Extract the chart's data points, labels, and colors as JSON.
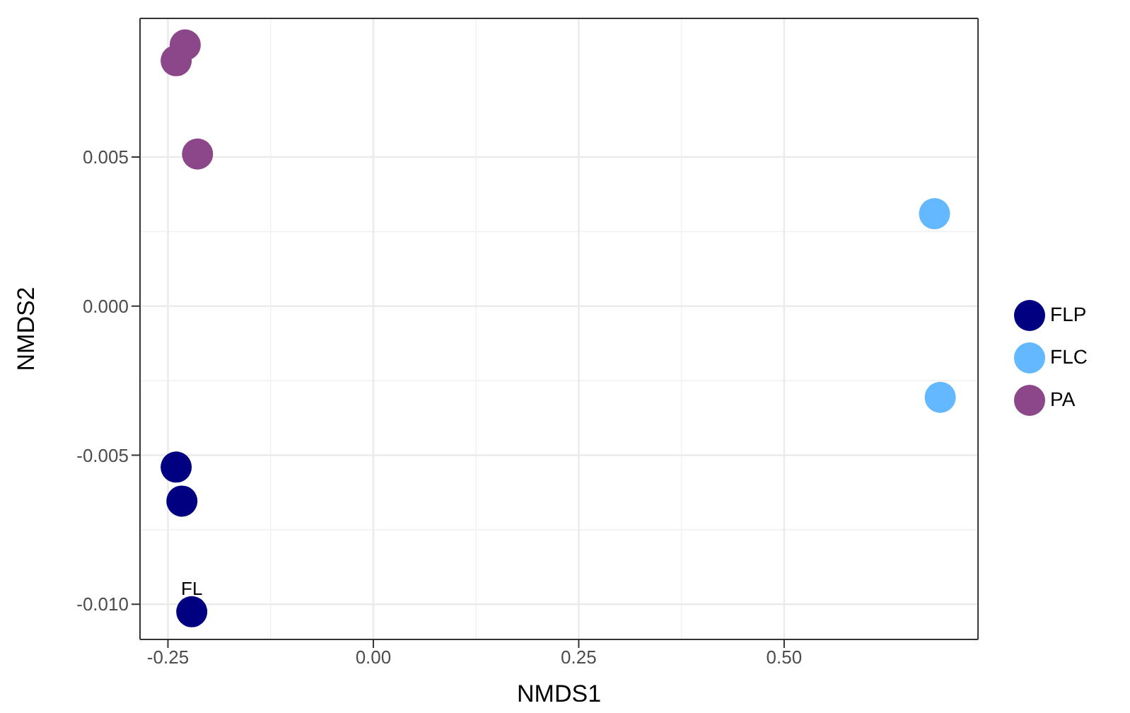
{
  "chart_data": {
    "type": "scatter",
    "xlabel": "NMDS1",
    "ylabel": "NMDS2",
    "xlim": [
      -0.284,
      0.736
    ],
    "xticks": [
      {
        "value": -0.25,
        "label": "-0.25"
      },
      {
        "value": 0,
        "label": "0.00"
      },
      {
        "value": 0.25,
        "label": "0.25"
      },
      {
        "value": 0.5,
        "label": "0.50"
      }
    ],
    "ylim": [
      -0.01118,
      0.00965
    ],
    "yticks": [
      {
        "value": -0.01,
        "label": "-0.010"
      },
      {
        "value": -0.005,
        "label": "-0.005"
      },
      {
        "value": 0,
        "label": "0.000"
      },
      {
        "value": 0.005,
        "label": "0.005"
      }
    ],
    "grid": true,
    "legend": "right",
    "marker": "circle",
    "series": [
      {
        "name": "FLP",
        "color": "#000080",
        "x": [
          -0.24,
          -0.233,
          -0.221
        ],
        "values": [
          -0.0054,
          -0.00654,
          -0.01025
        ]
      },
      {
        "name": "FLC",
        "color": "#63b8ff",
        "x": [
          0.683,
          0.69
        ],
        "values": [
          0.0031,
          -0.00306
        ]
      },
      {
        "name": "PA",
        "color": "#8b4789",
        "x": [
          -0.229,
          -0.24,
          -0.214
        ],
        "values": [
          0.00876,
          0.00823,
          0.0051
        ]
      }
    ],
    "annotations": [
      {
        "text": "FL",
        "x": -0.221,
        "y": -0.01025
      }
    ]
  }
}
